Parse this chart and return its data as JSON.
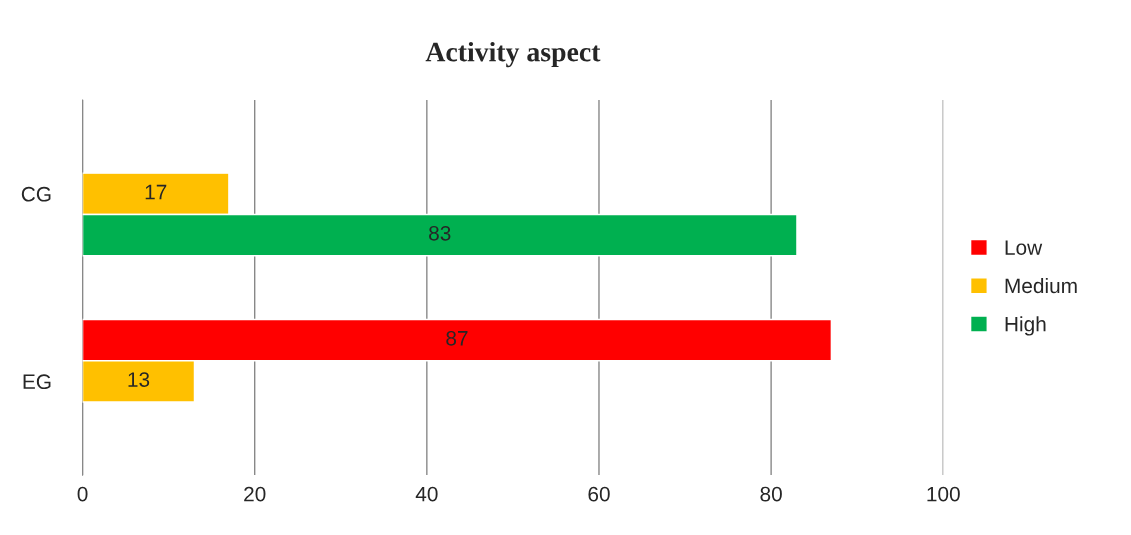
{
  "chart_data": {
    "type": "bar",
    "orientation": "horizontal",
    "title": "Activity aspect",
    "categories": [
      "CG",
      "EG"
    ],
    "series": [
      {
        "name": "Low",
        "color": "#ff0000",
        "values": [
          null,
          87
        ]
      },
      {
        "name": "Medium",
        "color": "#ffc000",
        "values": [
          17,
          13
        ]
      },
      {
        "name": "High",
        "color": "#00b050",
        "values": [
          83,
          null
        ]
      }
    ],
    "xlim": [
      0,
      100
    ],
    "xticks": [
      0,
      20,
      40,
      60,
      80,
      100
    ],
    "grid": "x",
    "legend": "right",
    "data_labels": true
  }
}
